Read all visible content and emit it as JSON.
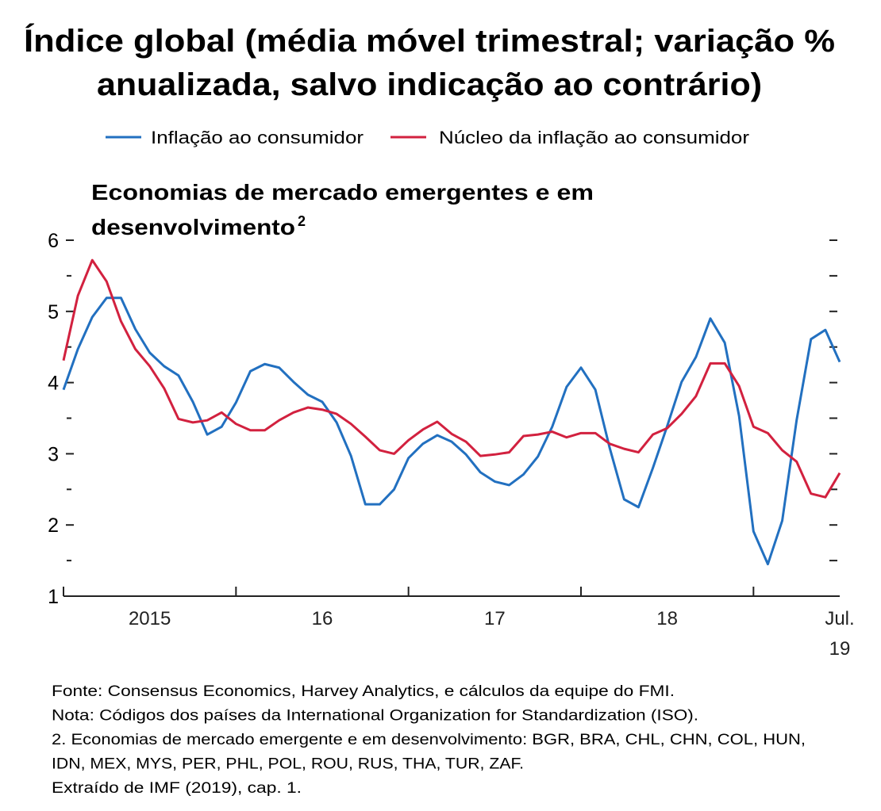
{
  "chart_data": {
    "type": "line",
    "title": [
      "Índice global (média móvel trimestral; variação %",
      "anualizada, salvo indicação ao contrário)"
    ],
    "subtitle": [
      "Economias de mercado emergentes e em",
      "desenvolvimento"
    ],
    "subtitle_footnote_mark": "2",
    "categories": [
      null,
      null,
      null,
      null,
      null,
      null,
      "2015",
      null,
      null,
      null,
      null,
      null,
      null,
      null,
      null,
      null,
      null,
      null,
      "16",
      null,
      null,
      null,
      null,
      null,
      null,
      null,
      null,
      null,
      null,
      null,
      "17",
      null,
      null,
      null,
      null,
      null,
      null,
      null,
      null,
      null,
      null,
      null,
      "18",
      null,
      null,
      null,
      null,
      null,
      null,
      null,
      null,
      null,
      null,
      null,
      "Jul. 19"
    ],
    "series": [
      {
        "name": "Inflação ao consumidor",
        "color": "#2270c0",
        "values": [
          3.9,
          4.47,
          4.92,
          5.19,
          5.19,
          4.75,
          4.42,
          4.23,
          4.1,
          3.73,
          3.27,
          3.38,
          3.72,
          4.16,
          4.26,
          4.21,
          4.01,
          3.83,
          3.73,
          3.44,
          2.97,
          2.29,
          2.29,
          2.5,
          2.94,
          3.14,
          3.26,
          3.17,
          2.99,
          2.74,
          2.61,
          2.56,
          2.71,
          2.96,
          3.38,
          3.94,
          4.21,
          3.9,
          3.08,
          2.36,
          2.25,
          2.8,
          3.39,
          4.01,
          4.36,
          4.9,
          4.56,
          3.53,
          1.91,
          1.45,
          2.06,
          3.47,
          4.61,
          4.74,
          4.29
        ]
      },
      {
        "name": "Núcleo da inflação ao consumidor",
        "color": "#d2213f",
        "values": [
          4.31,
          5.22,
          5.72,
          5.42,
          4.86,
          4.47,
          4.23,
          3.92,
          3.49,
          3.44,
          3.47,
          3.58,
          3.42,
          3.33,
          3.33,
          3.47,
          3.58,
          3.65,
          3.62,
          3.56,
          3.42,
          3.24,
          3.05,
          3.0,
          3.19,
          3.34,
          3.45,
          3.28,
          3.17,
          2.97,
          2.99,
          3.02,
          3.25,
          3.27,
          3.31,
          3.23,
          3.29,
          3.29,
          3.14,
          3.07,
          3.02,
          3.27,
          3.36,
          3.56,
          3.81,
          4.27,
          4.27,
          3.95,
          3.38,
          3.29,
          3.05,
          2.89,
          2.44,
          2.39,
          2.73
        ]
      }
    ],
    "ylim": [
      1,
      6
    ],
    "yticks": [
      1,
      2,
      3,
      4,
      5,
      6
    ],
    "yminorticks": [
      1.5,
      2.5,
      3.5,
      4.5,
      5.5
    ],
    "notes": [
      "Fonte: Consensus Economics, Harvey Analytics, e cálculos da equipe do FMI.",
      "Nota: Códigos dos países da International Organization for Standardization (ISO).",
      "2. Economias de mercado emergente e em desenvolvimento: BGR, BRA, CHL, CHN, COL, HUN,",
      "IDN, MEX, MYS, PER, PHL, POL, ROU, RUS, THA, TUR, ZAF.",
      "Extraído de IMF (2019), cap. 1."
    ]
  }
}
